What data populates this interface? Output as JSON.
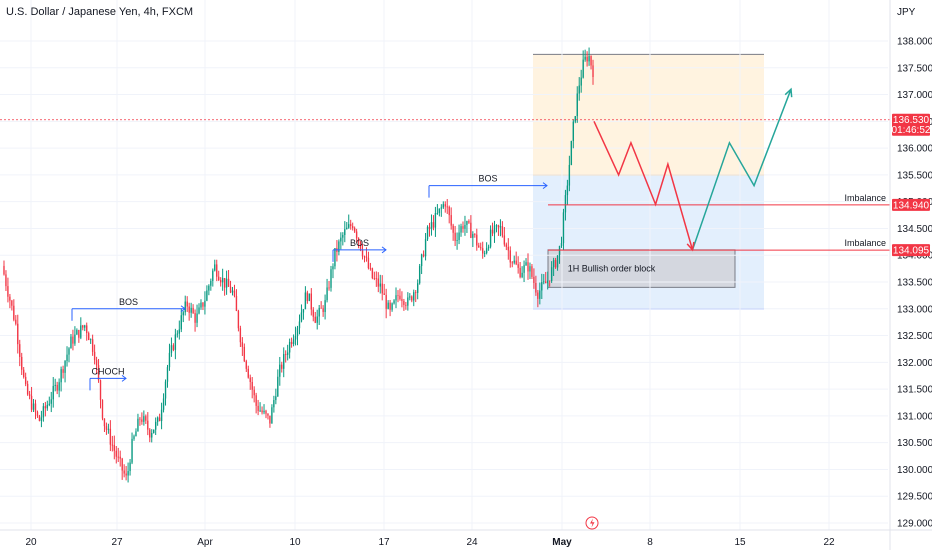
{
  "header": {
    "symbol_title": "U.S. Dollar / Japanese Yen, 4h, FXCM",
    "currency": "JPY"
  },
  "colors": {
    "up": "#089981",
    "down": "#f23645",
    "bos_line": "#2962ff",
    "price_tag": "#f23645",
    "premium_zone": "#fff3e0",
    "discount_zone": "#e3effd",
    "order_block": "#d1d4dc",
    "projection_down": "#f23645",
    "projection_up": "#26a69a"
  },
  "chart_data": {
    "type": "candlestick",
    "title": "U.S. Dollar / Japanese Yen, 4h, FXCM",
    "ylim": [
      128.9,
      138.3
    ],
    "y_ticks": [
      "138.000",
      "137.500",
      "137.000",
      "136.500",
      "136.000",
      "135.500",
      "135.000",
      "134.500",
      "134.000",
      "133.500",
      "133.000",
      "132.500",
      "132.000",
      "131.500",
      "131.000",
      "130.500",
      "130.000",
      "129.500",
      "129.000"
    ],
    "x_ticks": [
      "20",
      "27",
      "Apr",
      "10",
      "17",
      "24",
      "May",
      "8",
      "15",
      "22"
    ],
    "series_path": [
      [
        0,
        133.8
      ],
      [
        3,
        132.7
      ],
      [
        5,
        131.5
      ],
      [
        8,
        130.9
      ],
      [
        12,
        131.6
      ],
      [
        15,
        132.4
      ],
      [
        18,
        132.7
      ],
      [
        20,
        132.2
      ],
      [
        22,
        130.9
      ],
      [
        25,
        130.2
      ],
      [
        27,
        129.8
      ],
      [
        28,
        130.4
      ],
      [
        30,
        131.0
      ],
      [
        32,
        130.7
      ],
      [
        34,
        130.9
      ],
      [
        36,
        132.0
      ],
      [
        38,
        132.6
      ],
      [
        40,
        133.1
      ],
      [
        42,
        132.8
      ],
      [
        44,
        133.2
      ],
      [
        46,
        133.8
      ],
      [
        48,
        133.5
      ],
      [
        50,
        133.3
      ],
      [
        52,
        132.3
      ],
      [
        55,
        131.2
      ],
      [
        58,
        130.9
      ],
      [
        60,
        131.8
      ],
      [
        62,
        132.3
      ],
      [
        64,
        132.7
      ],
      [
        66,
        133.3
      ],
      [
        68,
        132.8
      ],
      [
        70,
        133.1
      ],
      [
        72,
        134.0
      ],
      [
        74,
        134.4
      ],
      [
        76,
        134.6
      ],
      [
        78,
        134.1
      ],
      [
        80,
        133.6
      ],
      [
        82,
        133.4
      ],
      [
        84,
        132.9
      ],
      [
        86,
        133.3
      ],
      [
        88,
        133.1
      ],
      [
        90,
        133.5
      ],
      [
        92,
        134.4
      ],
      [
        94,
        134.7
      ],
      [
        96,
        135.0
      ],
      [
        98,
        134.3
      ],
      [
        100,
        134.6
      ],
      [
        102,
        134.4
      ],
      [
        104,
        134.0
      ],
      [
        106,
        134.4
      ],
      [
        108,
        134.5
      ],
      [
        110,
        134.0
      ],
      [
        112,
        133.7
      ],
      [
        114,
        133.8
      ],
      [
        116,
        133.3
      ],
      [
        118,
        133.5
      ],
      [
        120,
        133.9
      ],
      [
        121,
        134.2
      ],
      [
        122,
        135.0
      ],
      [
        123,
        135.8
      ],
      [
        124,
        136.6
      ],
      [
        125,
        137.2
      ],
      [
        126,
        137.6
      ],
      [
        127,
        137.75
      ],
      [
        128,
        137.45
      ]
    ],
    "series_range": {
      "start": "2023-03-15",
      "end": "2023-05-02"
    },
    "current_price": {
      "value": "136.530",
      "countdown": "01:46:52"
    },
    "annotations": [
      {
        "label": "CHOCH",
        "y": 131.7
      },
      {
        "label": "BOS",
        "y": 133.0
      },
      {
        "label": "BOS",
        "y": 134.1
      },
      {
        "label": "BOS",
        "y": 135.3
      },
      {
        "label": "1H Bullish order block",
        "y_range": [
          133.4,
          134.1
        ]
      },
      {
        "label": "Imbalance",
        "y": 134.94,
        "price_tag": "134.940"
      },
      {
        "label": "Imbalance",
        "y": 134.095,
        "price_tag": "134.095"
      }
    ],
    "projection_path": [
      {
        "date": "2023-05-02",
        "y": 136.5
      },
      {
        "date": "2023-05-04",
        "y": 135.5
      },
      {
        "date": "2023-05-05",
        "y": 136.1
      },
      {
        "date": "2023-05-07",
        "y": 134.95
      },
      {
        "date": "2023-05-08",
        "y": 135.7
      },
      {
        "date": "2023-05-10",
        "y": 134.1
      },
      {
        "date": "2023-05-13",
        "y": 136.1
      },
      {
        "date": "2023-05-15",
        "y": 135.3
      },
      {
        "date": "2023-05-18",
        "y": 137.1
      }
    ],
    "zones": {
      "premium": [
        135.5,
        137.75
      ],
      "discount": [
        133.0,
        135.5
      ]
    }
  }
}
